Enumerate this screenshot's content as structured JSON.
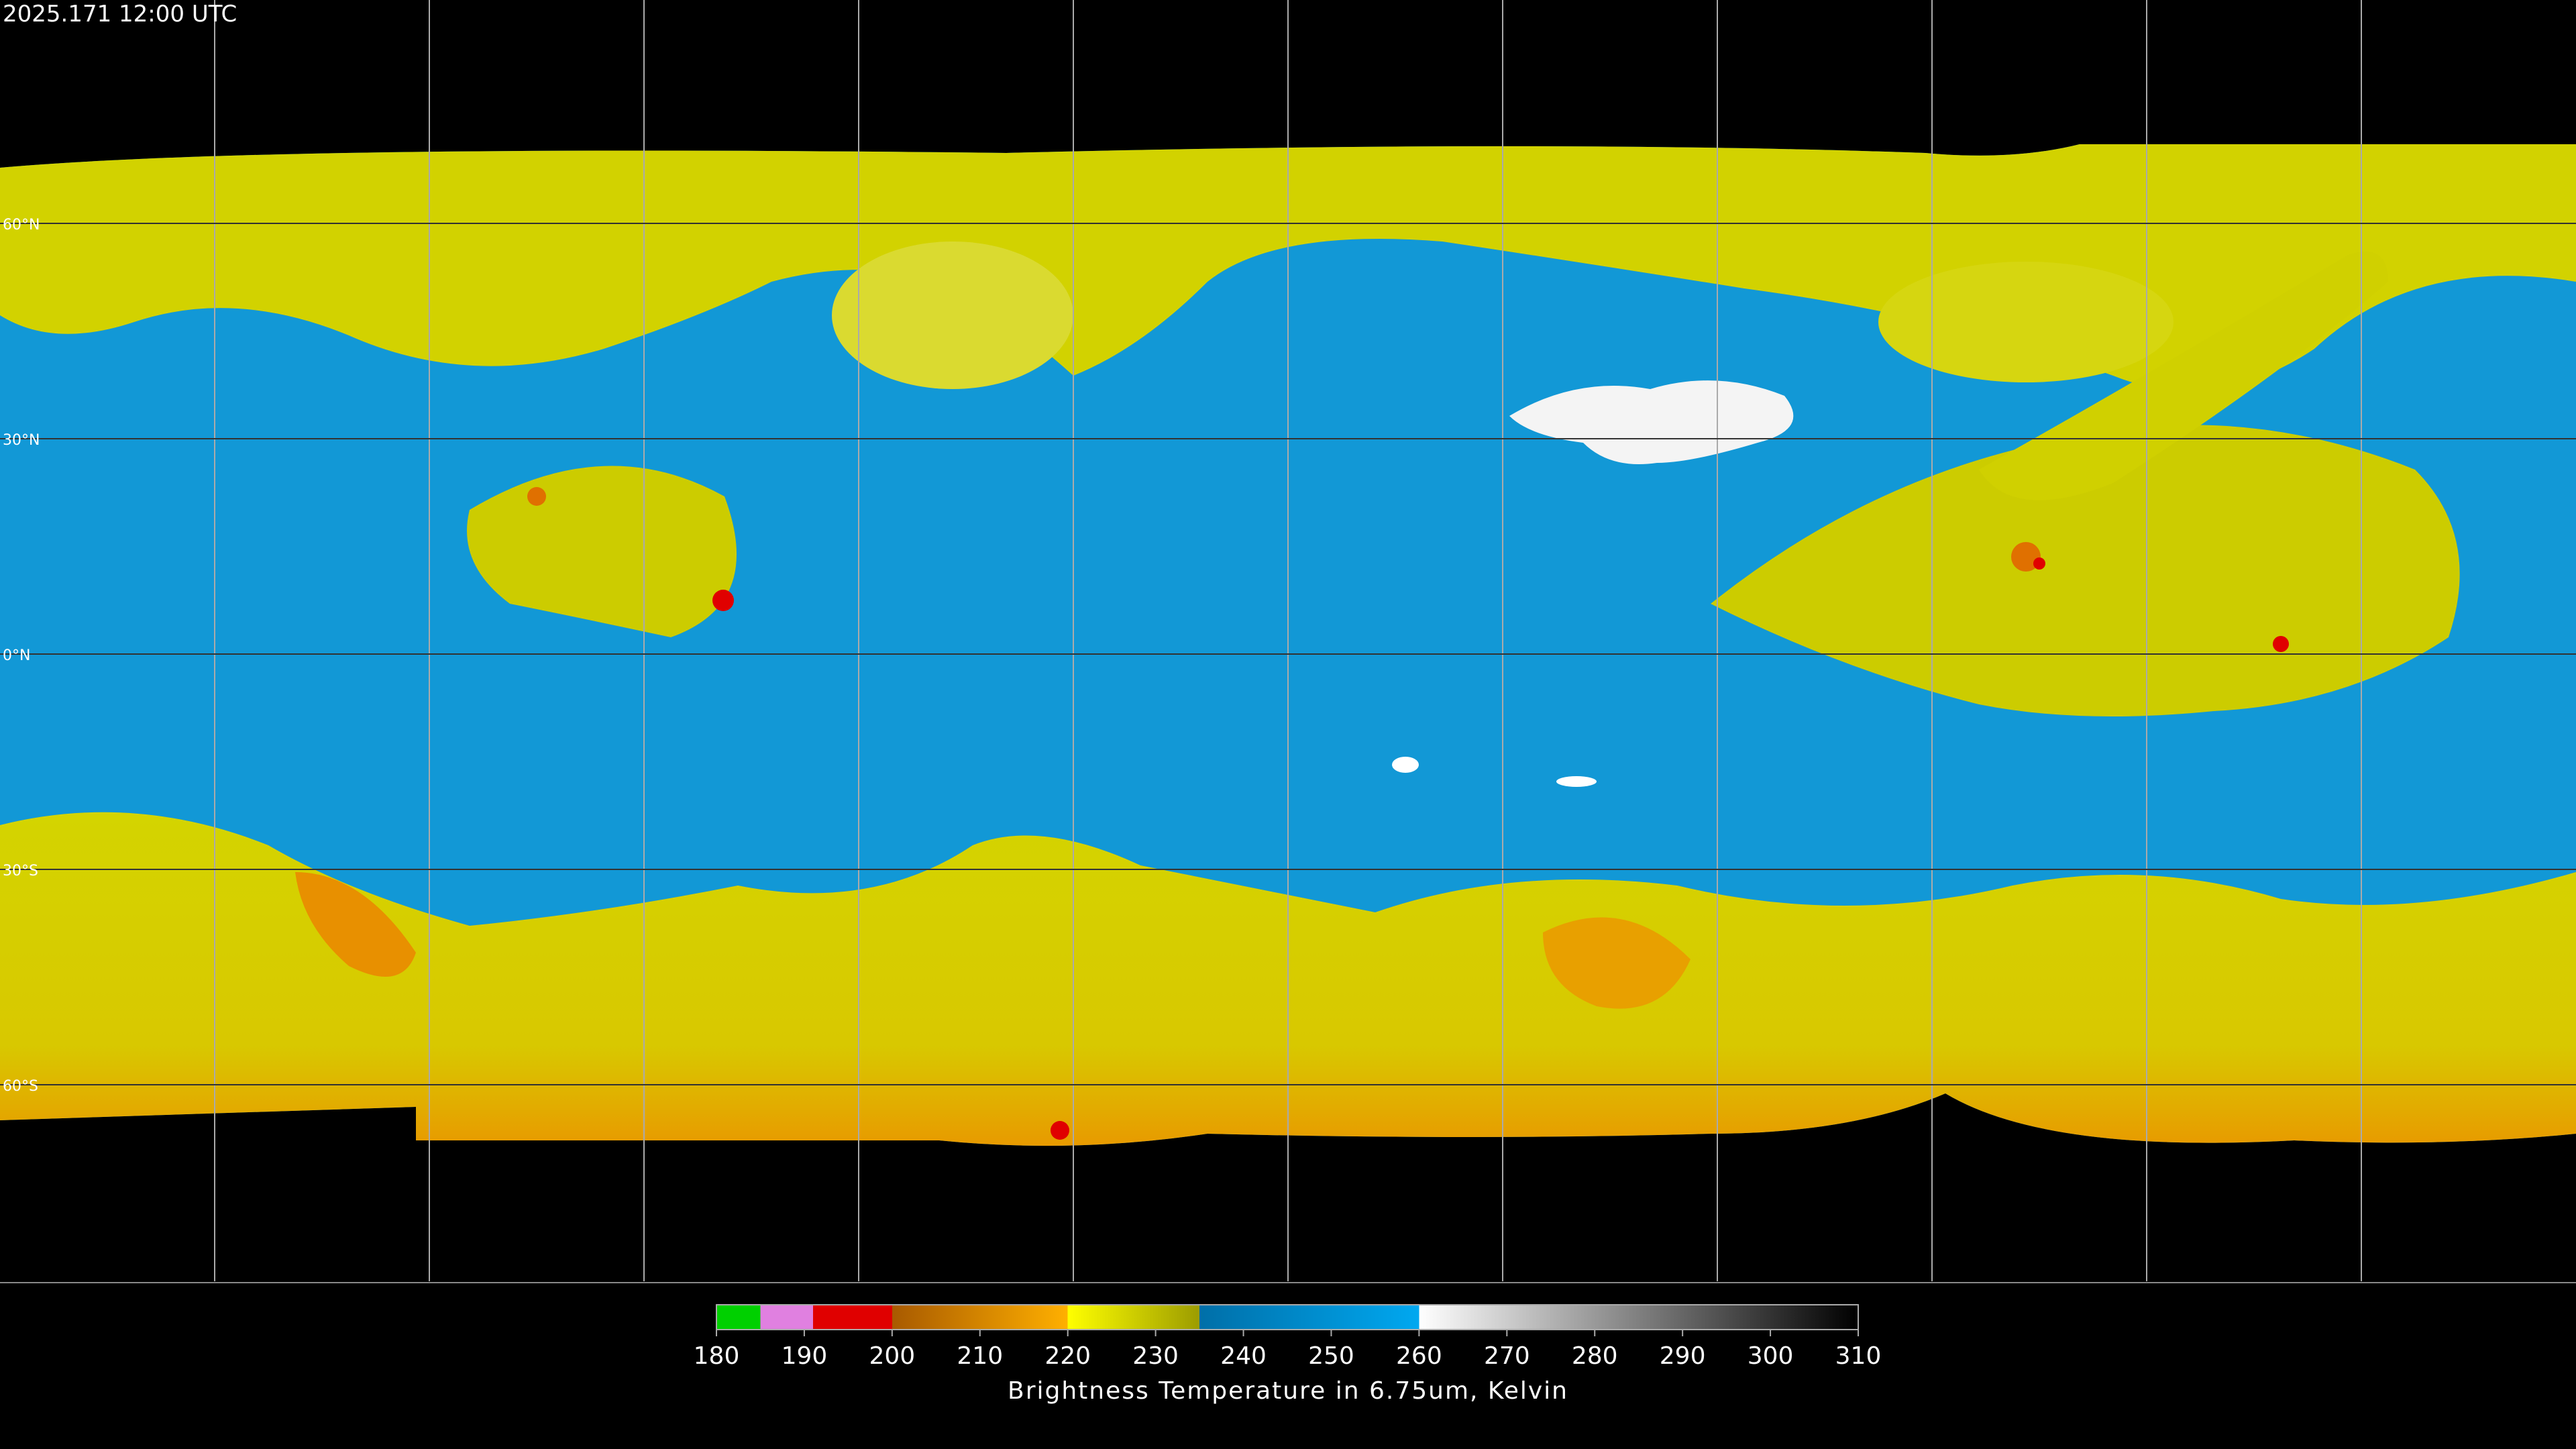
{
  "header": {
    "timestamp": "2025.171 12:00 UTC"
  },
  "map": {
    "latitude_labels": [
      "60°N",
      "30°N",
      "0°N",
      "30°S",
      "60°S"
    ]
  },
  "colorbar": {
    "xlim": [
      180,
      310
    ],
    "xticks": [
      180,
      190,
      200,
      210,
      220,
      230,
      240,
      250,
      260,
      270,
      280,
      290,
      300,
      310
    ],
    "label": "Brightness Temperature in 6.75um, Kelvin"
  }
}
